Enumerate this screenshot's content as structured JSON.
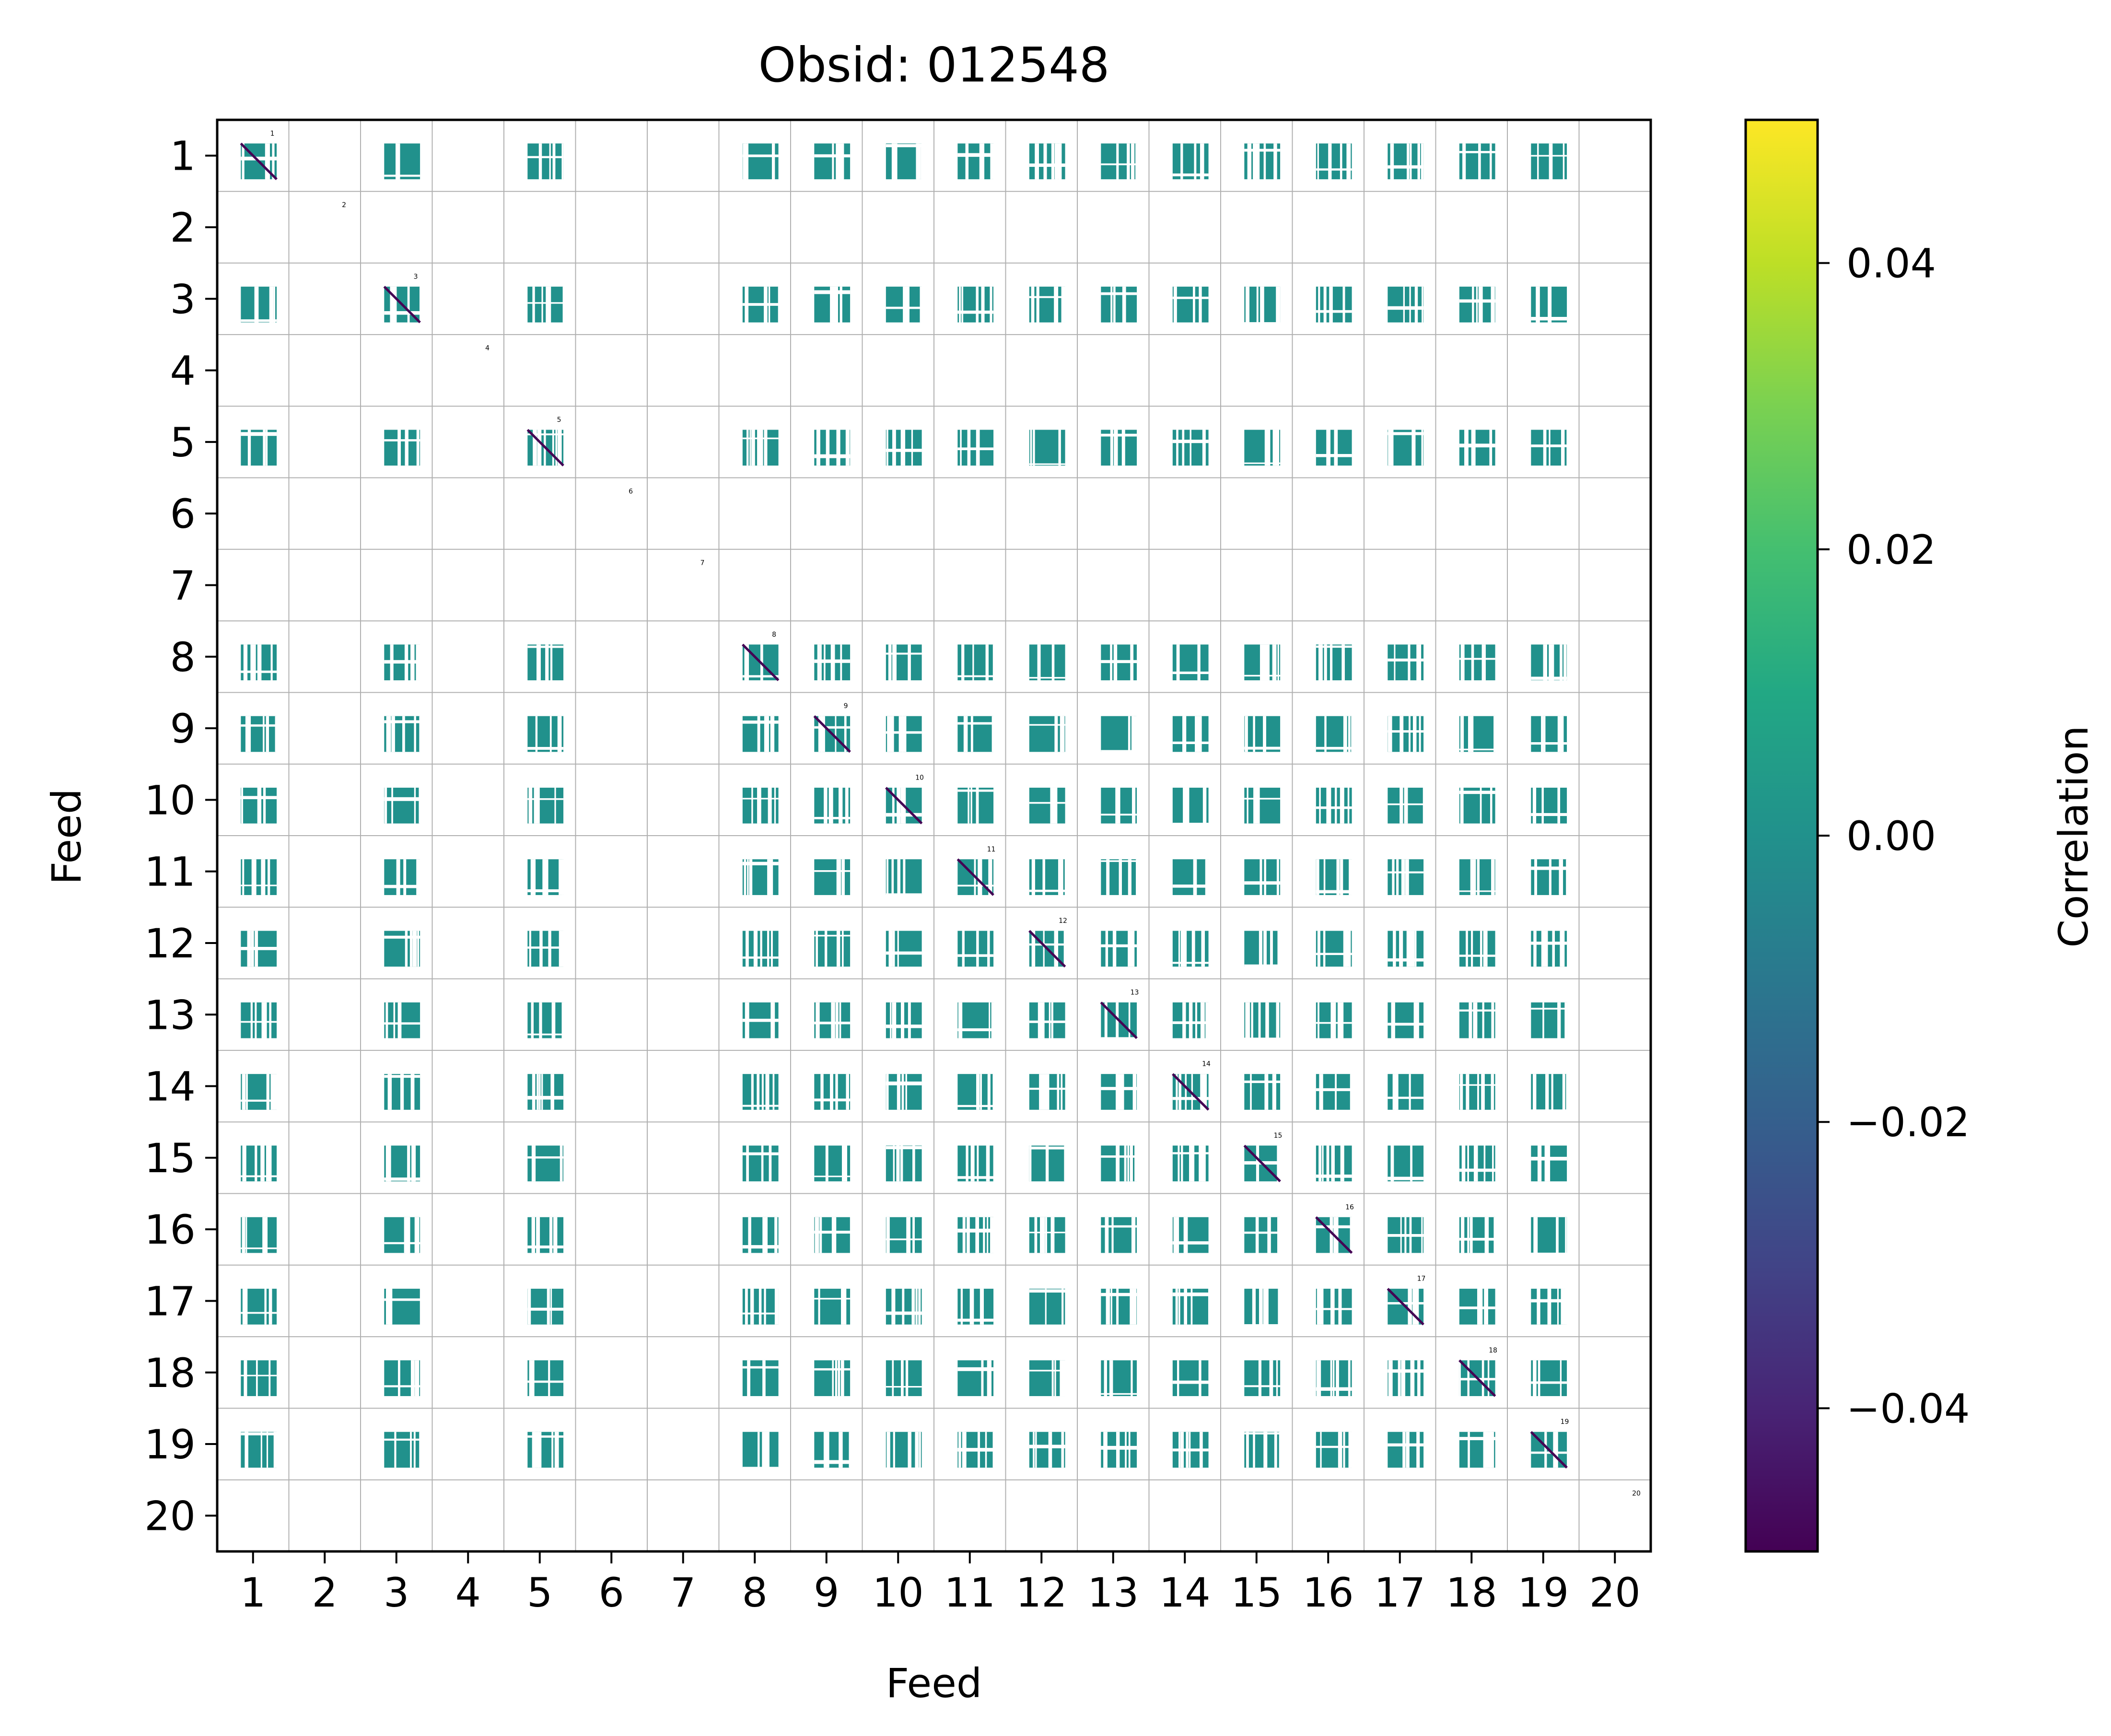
{
  "chart_data": {
    "type": "heatmap",
    "title": "Obsid: 012548",
    "xlabel": "Feed",
    "ylabel": "Feed",
    "x_ticks": [
      "1",
      "2",
      "3",
      "4",
      "5",
      "6",
      "7",
      "8",
      "9",
      "10",
      "11",
      "12",
      "13",
      "14",
      "15",
      "16",
      "17",
      "18",
      "19",
      "20"
    ],
    "y_ticks": [
      "1",
      "2",
      "3",
      "4",
      "5",
      "6",
      "7",
      "8",
      "9",
      "10",
      "11",
      "12",
      "13",
      "14",
      "15",
      "16",
      "17",
      "18",
      "19",
      "20"
    ],
    "feed_labels": [
      "1",
      "2",
      "3",
      "4",
      "5",
      "6",
      "7",
      "8",
      "9",
      "10",
      "11",
      "12",
      "13",
      "14",
      "15",
      "16",
      "17",
      "18",
      "19",
      "20"
    ],
    "n_feeds": 20,
    "colormap": "viridis",
    "colorbar": {
      "label": "Correlation",
      "vmin": -0.05,
      "vmax": 0.05,
      "ticks": [
        "0.04",
        "0.02",
        "0.00",
        "−0.02",
        "−0.04"
      ],
      "tick_values": [
        0.04,
        0.02,
        0.0,
        -0.02,
        -0.04
      ]
    },
    "dominant_value": 0.0,
    "dominant_color": "#21918c",
    "diagonal_value": -0.05,
    "diagonal_color": "#440154",
    "active_feeds": [
      1,
      3,
      5,
      8,
      9,
      10,
      11,
      12,
      13,
      14,
      15,
      16,
      17,
      18,
      19
    ],
    "inactive_feeds": [
      2,
      4,
      6,
      7,
      20
    ],
    "grid": true
  }
}
